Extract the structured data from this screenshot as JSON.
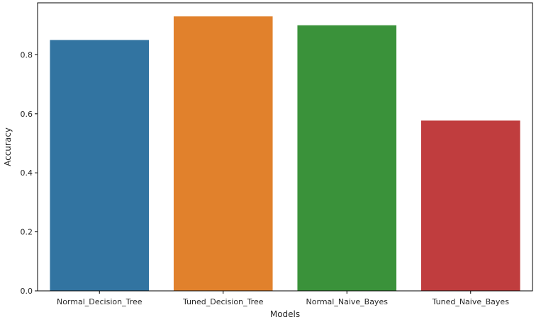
{
  "chart_data": {
    "type": "bar",
    "xlabel": "Models",
    "ylabel": "Accuracy",
    "categories": [
      "Normal_Decision_Tree",
      "Tuned_Decision_Tree",
      "Normal_Naive_Bayes",
      "Tuned_Naive_Bayes"
    ],
    "values": [
      0.85,
      0.93,
      0.9,
      0.577
    ],
    "colors": [
      "#3274a1",
      "#e1812c",
      "#3a923a",
      "#c03d3e"
    ],
    "yticks": [
      "0.0",
      "0.2",
      "0.4",
      "0.6",
      "0.8"
    ],
    "ytick_values": [
      0.0,
      0.2,
      0.4,
      0.6,
      0.8
    ],
    "ylim": [
      0,
      0.976
    ],
    "grid": false,
    "legend": "none"
  }
}
